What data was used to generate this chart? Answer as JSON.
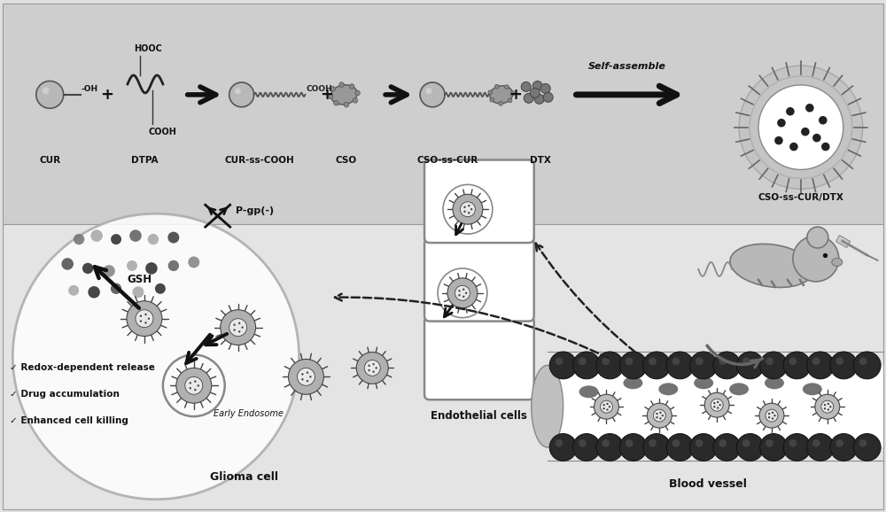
{
  "bg_color": "#e0e0e0",
  "top_panel_color": "#d0d0d0",
  "bottom_bg_color": "#e8e8e8",
  "labels_top": [
    "CUR",
    "DTPA",
    "CUR-ss-COOH",
    "CSO",
    "CSO-ss-CUR",
    "DTX"
  ],
  "label_self_assemble": "Self-assemble",
  "label_cso_dtx": "CSO-ss-CUR/DTX",
  "label_blood_vessel": "Blood vessel",
  "label_endothelial": "Endothelial cells",
  "label_glioma": "Glioma cell",
  "label_early_endosome": "Early Endosome",
  "label_pgp": "P-gp(-)",
  "label_gsh": "GSH",
  "checklist": [
    "✓ Redox-dependent release",
    "✓ Drug accumulation",
    "✓ Enhanced cell killing"
  ]
}
